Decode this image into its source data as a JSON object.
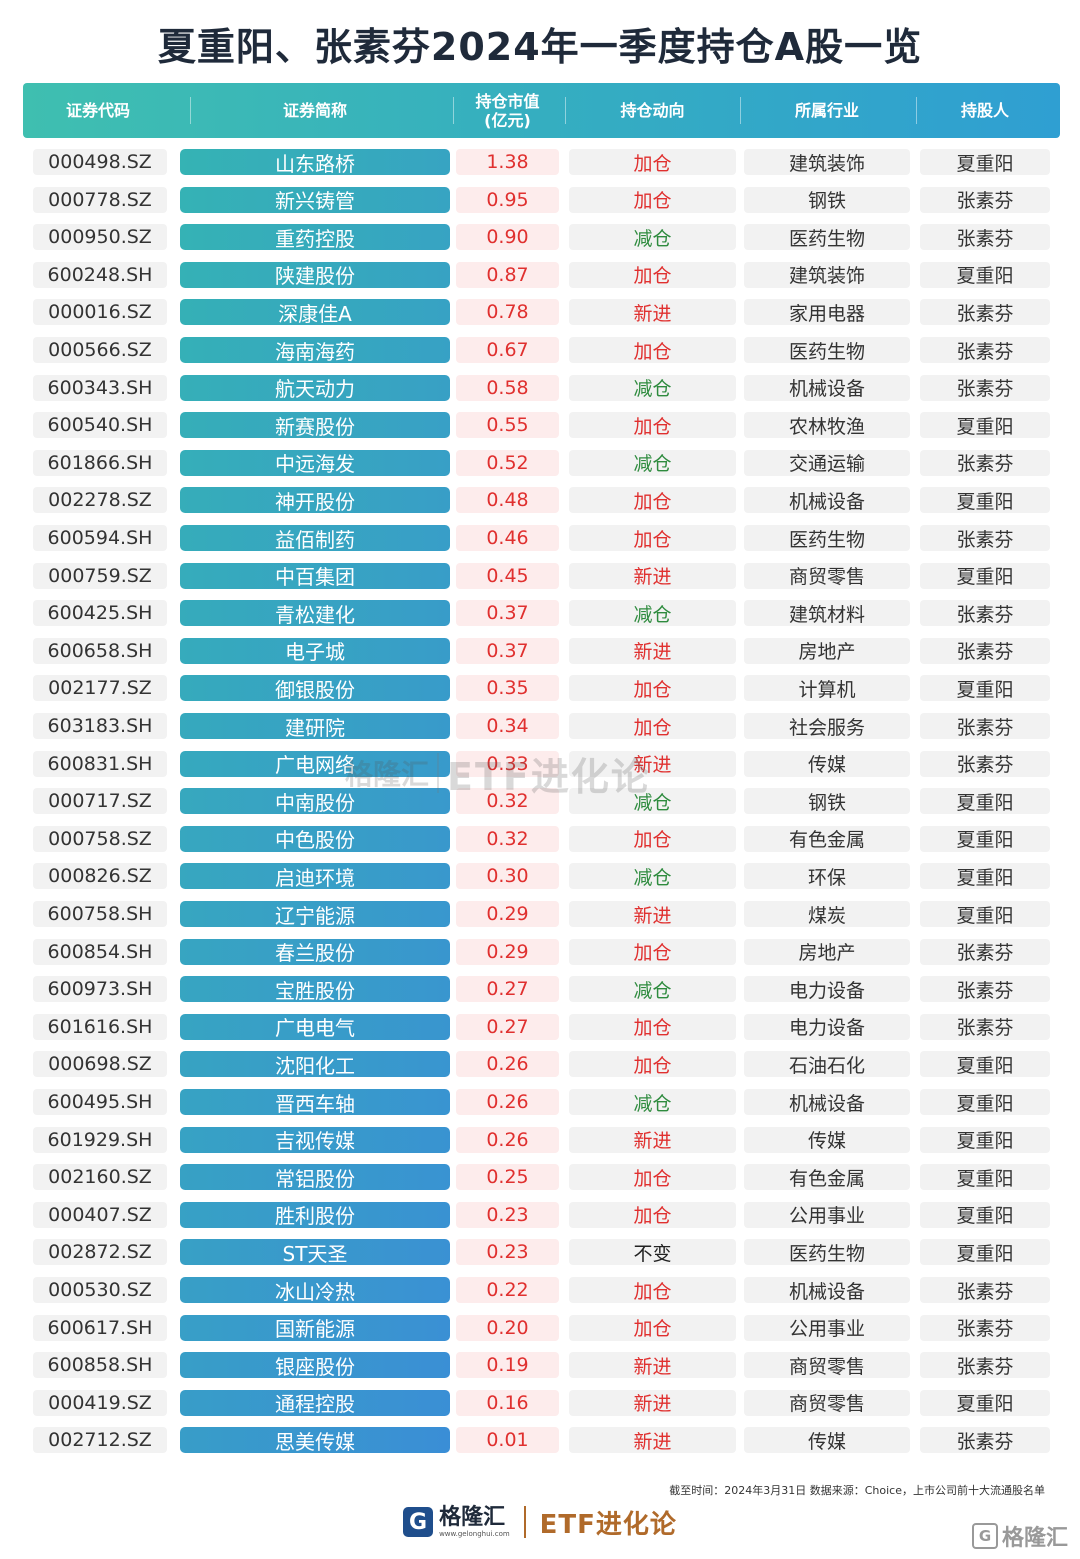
{
  "title": "夏重阳、张素芬2024年一季度持仓A股一览",
  "columns": {
    "code": "证券代码",
    "name": "证券简称",
    "value_line1": "持仓市值",
    "value_line2": "(亿元)",
    "direction": "持仓动向",
    "industry": "所属行业",
    "holder": "持股人"
  },
  "colors": {
    "header_start": "#3fbfb0",
    "header_end": "#2f9fd2",
    "name_row_start": "#35b3b4",
    "name_row_end": "#3a8ed6",
    "up_red": "#e0302f",
    "down_green": "#2e8b3e"
  },
  "rows": [
    {
      "code": "000498.SZ",
      "name": "山东路桥",
      "value": "1.38",
      "direction": "加仓",
      "industry": "建筑装饰",
      "holder": "夏重阳"
    },
    {
      "code": "000778.SZ",
      "name": "新兴铸管",
      "value": "0.95",
      "direction": "加仓",
      "industry": "钢铁",
      "holder": "张素芬"
    },
    {
      "code": "000950.SZ",
      "name": "重药控股",
      "value": "0.90",
      "direction": "减仓",
      "industry": "医药生物",
      "holder": "张素芬"
    },
    {
      "code": "600248.SH",
      "name": "陕建股份",
      "value": "0.87",
      "direction": "加仓",
      "industry": "建筑装饰",
      "holder": "夏重阳"
    },
    {
      "code": "000016.SZ",
      "name": "深康佳A",
      "value": "0.78",
      "direction": "新进",
      "industry": "家用电器",
      "holder": "张素芬"
    },
    {
      "code": "000566.SZ",
      "name": "海南海药",
      "value": "0.67",
      "direction": "加仓",
      "industry": "医药生物",
      "holder": "张素芬"
    },
    {
      "code": "600343.SH",
      "name": "航天动力",
      "value": "0.58",
      "direction": "减仓",
      "industry": "机械设备",
      "holder": "张素芬"
    },
    {
      "code": "600540.SH",
      "name": "新赛股份",
      "value": "0.55",
      "direction": "加仓",
      "industry": "农林牧渔",
      "holder": "夏重阳"
    },
    {
      "code": "601866.SH",
      "name": "中远海发",
      "value": "0.52",
      "direction": "减仓",
      "industry": "交通运输",
      "holder": "张素芬"
    },
    {
      "code": "002278.SZ",
      "name": "神开股份",
      "value": "0.48",
      "direction": "加仓",
      "industry": "机械设备",
      "holder": "夏重阳"
    },
    {
      "code": "600594.SH",
      "name": "益佰制药",
      "value": "0.46",
      "direction": "加仓",
      "industry": "医药生物",
      "holder": "张素芬"
    },
    {
      "code": "000759.SZ",
      "name": "中百集团",
      "value": "0.45",
      "direction": "新进",
      "industry": "商贸零售",
      "holder": "夏重阳"
    },
    {
      "code": "600425.SH",
      "name": "青松建化",
      "value": "0.37",
      "direction": "减仓",
      "industry": "建筑材料",
      "holder": "张素芬"
    },
    {
      "code": "600658.SH",
      "name": "电子城",
      "value": "0.37",
      "direction": "新进",
      "industry": "房地产",
      "holder": "张素芬"
    },
    {
      "code": "002177.SZ",
      "name": "御银股份",
      "value": "0.35",
      "direction": "加仓",
      "industry": "计算机",
      "holder": "夏重阳"
    },
    {
      "code": "603183.SH",
      "name": "建研院",
      "value": "0.34",
      "direction": "加仓",
      "industry": "社会服务",
      "holder": "张素芬"
    },
    {
      "code": "600831.SH",
      "name": "广电网络",
      "value": "0.33",
      "direction": "新进",
      "industry": "传媒",
      "holder": "张素芬"
    },
    {
      "code": "000717.SZ",
      "name": "中南股份",
      "value": "0.32",
      "direction": "减仓",
      "industry": "钢铁",
      "holder": "夏重阳"
    },
    {
      "code": "000758.SZ",
      "name": "中色股份",
      "value": "0.32",
      "direction": "加仓",
      "industry": "有色金属",
      "holder": "夏重阳"
    },
    {
      "code": "000826.SZ",
      "name": "启迪环境",
      "value": "0.30",
      "direction": "减仓",
      "industry": "环保",
      "holder": "夏重阳"
    },
    {
      "code": "600758.SH",
      "name": "辽宁能源",
      "value": "0.29",
      "direction": "新进",
      "industry": "煤炭",
      "holder": "夏重阳"
    },
    {
      "code": "600854.SH",
      "name": "春兰股份",
      "value": "0.29",
      "direction": "加仓",
      "industry": "房地产",
      "holder": "张素芬"
    },
    {
      "code": "600973.SH",
      "name": "宝胜股份",
      "value": "0.27",
      "direction": "减仓",
      "industry": "电力设备",
      "holder": "张素芬"
    },
    {
      "code": "601616.SH",
      "name": "广电电气",
      "value": "0.27",
      "direction": "加仓",
      "industry": "电力设备",
      "holder": "张素芬"
    },
    {
      "code": "000698.SZ",
      "name": "沈阳化工",
      "value": "0.26",
      "direction": "加仓",
      "industry": "石油石化",
      "holder": "夏重阳"
    },
    {
      "code": "600495.SH",
      "name": "晋西车轴",
      "value": "0.26",
      "direction": "减仓",
      "industry": "机械设备",
      "holder": "夏重阳"
    },
    {
      "code": "601929.SH",
      "name": "吉视传媒",
      "value": "0.26",
      "direction": "新进",
      "industry": "传媒",
      "holder": "夏重阳"
    },
    {
      "code": "002160.SZ",
      "name": "常铝股份",
      "value": "0.25",
      "direction": "加仓",
      "industry": "有色金属",
      "holder": "夏重阳"
    },
    {
      "code": "000407.SZ",
      "name": "胜利股份",
      "value": "0.23",
      "direction": "加仓",
      "industry": "公用事业",
      "holder": "夏重阳"
    },
    {
      "code": "002872.SZ",
      "name": "ST天圣",
      "value": "0.23",
      "direction": "不变",
      "industry": "医药生物",
      "holder": "夏重阳"
    },
    {
      "code": "000530.SZ",
      "name": "冰山冷热",
      "value": "0.22",
      "direction": "加仓",
      "industry": "机械设备",
      "holder": "张素芬"
    },
    {
      "code": "600617.SH",
      "name": "国新能源",
      "value": "0.20",
      "direction": "加仓",
      "industry": "公用事业",
      "holder": "张素芬"
    },
    {
      "code": "600858.SH",
      "name": "银座股份",
      "value": "0.19",
      "direction": "新进",
      "industry": "商贸零售",
      "holder": "张素芬"
    },
    {
      "code": "000419.SZ",
      "name": "通程控股",
      "value": "0.16",
      "direction": "新进",
      "industry": "商贸零售",
      "holder": "夏重阳"
    },
    {
      "code": "002712.SZ",
      "name": "思美传媒",
      "value": "0.01",
      "direction": "新进",
      "industry": "传媒",
      "holder": "张素芬"
    }
  ],
  "watermark": {
    "logo": "格隆汇",
    "etf": "ETF进化论"
  },
  "footnote": "截至时间：2024年3月31日 数据来源：Choice，上市公司前十大流通股名单",
  "footer": {
    "logo_icon": "G",
    "logo_main": "格隆汇",
    "logo_sub": "www.gelonghui.com",
    "etf": "ETF进化论"
  },
  "corner": {
    "icon": "G",
    "text": "格隆汇"
  }
}
